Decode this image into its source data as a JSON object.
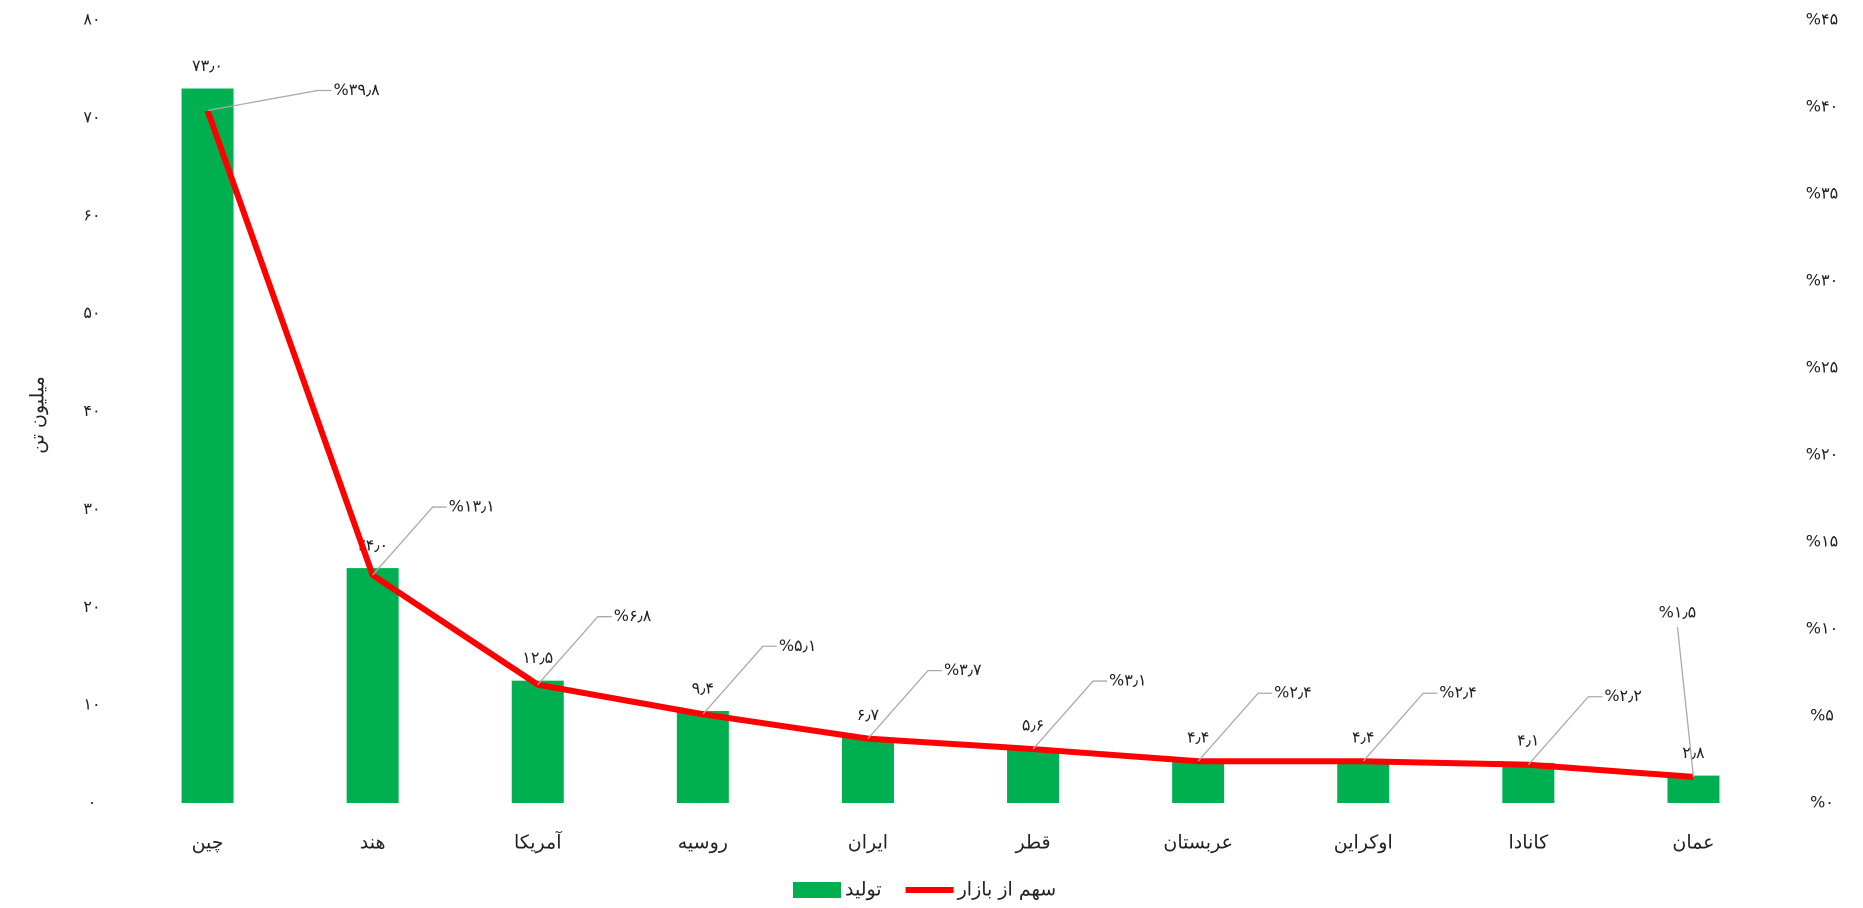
{
  "chart_data": {
    "type": "bar-line",
    "y_label": "میلیون تن",
    "categories": [
      "چین",
      "هند",
      "آمریکا",
      "روسیه",
      "ایران",
      "قطر",
      "عربستان",
      "اوکراین",
      "کانادا",
      "عمان"
    ],
    "series": [
      {
        "name": "تولید",
        "type": "bar",
        "color": "#00b050",
        "values": [
          73.0,
          24.0,
          12.5,
          9.4,
          6.7,
          5.6,
          4.4,
          4.4,
          4.1,
          2.8
        ],
        "value_labels": [
          "۷۳٫۰",
          "۲۴٫۰",
          "۱۲٫۵",
          "۹٫۴",
          "۶٫۷",
          "۵٫۶",
          "۴٫۴",
          "۴٫۴",
          "۴٫۱",
          "۲٫۸"
        ]
      },
      {
        "name": "سهم از بازار",
        "type": "line",
        "axis": "y2",
        "color": "#ff0000",
        "values": [
          39.8,
          13.1,
          6.8,
          5.1,
          3.7,
          3.1,
          2.4,
          2.4,
          2.2,
          1.5
        ],
        "value_labels": [
          "%۳۹٫۸",
          "%۱۳٫۱",
          "%۶٫۸",
          "%۵٫۱",
          "%۳٫۷",
          "%۳٫۱",
          "%۲٫۴",
          "%۲٫۴",
          "%۲٫۲",
          "%۱٫۵"
        ]
      }
    ],
    "ylim": [
      0,
      80
    ],
    "yticks": [
      {
        "value": 0,
        "label": "۰"
      },
      {
        "value": 10,
        "label": "۱۰"
      },
      {
        "value": 20,
        "label": "۲۰"
      },
      {
        "value": 30,
        "label": "۳۰"
      },
      {
        "value": 40,
        "label": "۴۰"
      },
      {
        "value": 50,
        "label": "۵۰"
      },
      {
        "value": 60,
        "label": "۶۰"
      },
      {
        "value": 70,
        "label": "۷۰"
      },
      {
        "value": 80,
        "label": "۸۰"
      }
    ],
    "y2lim": [
      0,
      45
    ],
    "y2ticks": [
      {
        "value": 0,
        "label": "%۰"
      },
      {
        "value": 5,
        "label": "%۵"
      },
      {
        "value": 10,
        "label": "%۱۰"
      },
      {
        "value": 15,
        "label": "%۱۵"
      },
      {
        "value": 20,
        "label": "%۲۰"
      },
      {
        "value": 25,
        "label": "%۲۵"
      },
      {
        "value": 30,
        "label": "%۳۰"
      },
      {
        "value": 35,
        "label": "%۳۵"
      },
      {
        "value": 40,
        "label": "%۴۰"
      },
      {
        "value": 45,
        "label": "%۴۵"
      }
    ],
    "legend": "bottom"
  }
}
